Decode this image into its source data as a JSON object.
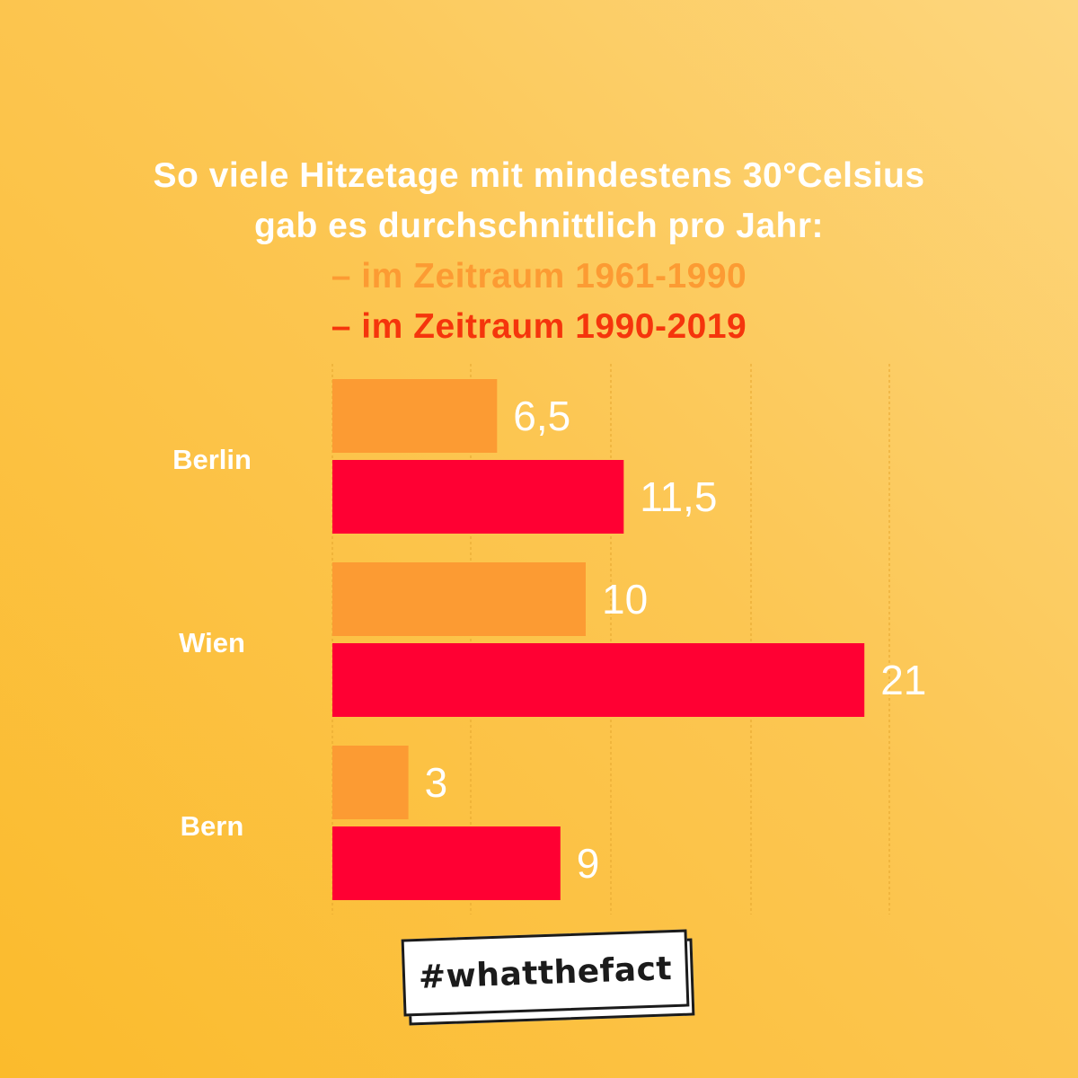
{
  "header": {
    "line1": "So viele Hitzetage mit mindestens 30°Celsius",
    "line2": "gab es durchschnittlich pro Jahr:",
    "line3": "– im Zeitraum 1961-1990",
    "line4": "– im Zeitraum 1990-2019"
  },
  "colors": {
    "series_1961_1990": "#fc9b33",
    "series_1990_2019": "#ff0033",
    "label_white": "#ffffff",
    "grid": "#e8a830"
  },
  "chart_data": {
    "type": "bar",
    "orientation": "horizontal",
    "title": "So viele Hitzetage mit mindestens 30°Celsius gab es durchschnittlich pro Jahr:",
    "categories": [
      "Berlin",
      "Wien",
      "Bern"
    ],
    "series": [
      {
        "name": "– im Zeitraum 1961-1990",
        "values": [
          6.5,
          10,
          3
        ],
        "labels": [
          "6,5",
          "10",
          "3"
        ]
      },
      {
        "name": "– im Zeitraum 1990-2019",
        "values": [
          11.5,
          21,
          9
        ],
        "labels": [
          "11,5",
          "21",
          "9"
        ]
      }
    ],
    "xlim": [
      0,
      22
    ],
    "grid": true
  },
  "footer": {
    "hashtag": "#whatthefact"
  }
}
